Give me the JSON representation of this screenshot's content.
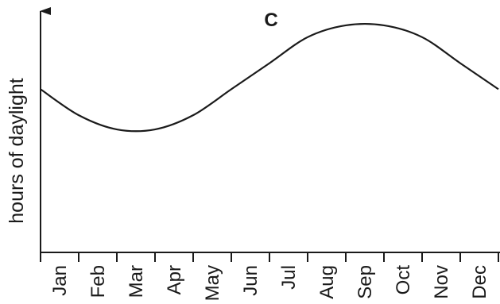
{
  "chart_data": {
    "type": "line",
    "title": "C",
    "xlabel": "",
    "ylabel": "hours of daylight",
    "categories": [
      "Jan",
      "Feb",
      "Mar",
      "Apr",
      "May",
      "Jun",
      "Jul",
      "Aug",
      "Sep",
      "Oct",
      "Nov",
      "Dec"
    ],
    "x": [
      0,
      1,
      2,
      3,
      4,
      5,
      6,
      7,
      8,
      9,
      10,
      11,
      12
    ],
    "values": [
      0.69,
      0.58,
      0.52,
      0.52,
      0.58,
      0.69,
      0.8,
      0.91,
      0.96,
      0.96,
      0.91,
      0.8,
      0.69
    ],
    "xlim": [
      0,
      12
    ],
    "ylim": [
      0,
      1
    ],
    "grid": false,
    "axis_arrow": "y"
  }
}
